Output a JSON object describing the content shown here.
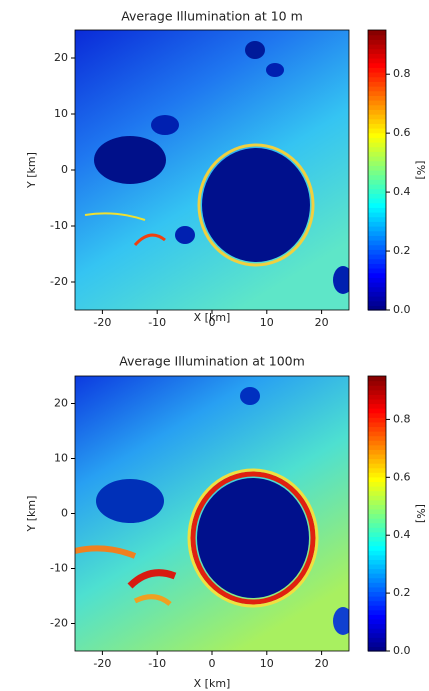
{
  "chart_data": [
    {
      "type": "heatmap",
      "title": "Average Illumination at 10 m",
      "xlabel": "X [km]",
      "ylabel": "Y [km]",
      "xlim": [
        -25,
        25
      ],
      "ylim": [
        -25,
        25
      ],
      "xticks": [
        -20,
        -10,
        0,
        10,
        20
      ],
      "yticks": [
        -20,
        -10,
        0,
        10,
        20
      ],
      "colormap": "jet",
      "colorbar": {
        "label": "[%]",
        "lim": [
          0,
          0.95
        ],
        "ticks": [
          {
            "value": 0,
            "label": "0.0"
          },
          {
            "value": 0.2,
            "label": "0.2"
          },
          {
            "value": 0.4,
            "label": "0.4"
          },
          {
            "value": 0.6,
            "label": "0.6"
          },
          {
            "value": 0.8,
            "label": "0.8"
          }
        ]
      }
    },
    {
      "type": "heatmap",
      "title": "Average Illumination at 100m",
      "xlabel": "X [km]",
      "ylabel": "Y [km]",
      "xlim": [
        -25,
        25
      ],
      "ylim": [
        -25,
        25
      ],
      "xticks": [
        -20,
        -10,
        0,
        10,
        20
      ],
      "yticks": [
        -20,
        -10,
        0,
        10,
        20
      ],
      "colormap": "jet",
      "colorbar": {
        "label": "[%]",
        "lim": [
          0,
          0.95
        ],
        "ticks": [
          {
            "value": 0,
            "label": "0.0"
          },
          {
            "value": 0.2,
            "label": "0.2"
          },
          {
            "value": 0.4,
            "label": "0.4"
          },
          {
            "value": 0.6,
            "label": "0.6"
          },
          {
            "value": 0.8,
            "label": "0.8"
          }
        ]
      }
    }
  ]
}
